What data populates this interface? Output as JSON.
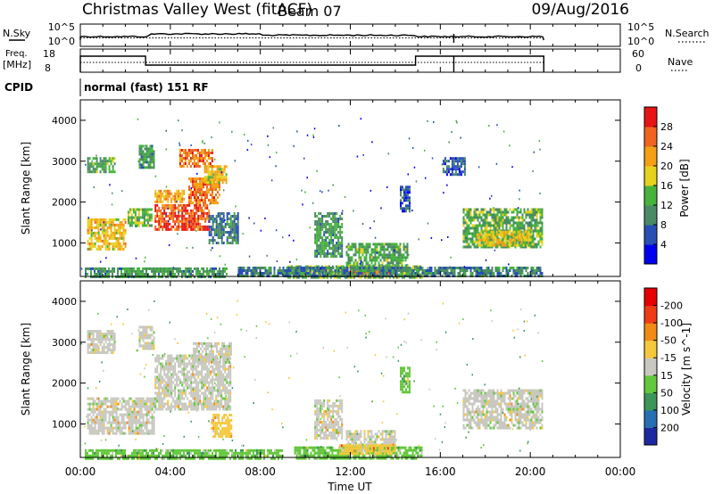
{
  "header": {
    "station": "Christmas Valley West (fitACF)",
    "beam": "Beam 07",
    "date": "09/Aug/2016"
  },
  "noise_panel": {
    "left_label": "N.Sky",
    "left_ticks": [
      "10^5",
      "10^0"
    ],
    "right_ticks": [
      "10^5",
      "10^0"
    ],
    "right_label": "N.Search"
  },
  "freq_panel": {
    "left_label_1": "Freq.",
    "left_label_2": "[MHz]",
    "left_ticks": [
      "18",
      "8"
    ],
    "right_ticks": [
      "60",
      "0"
    ],
    "right_label": "Nave"
  },
  "cpid": {
    "label": "CPID",
    "value": "normal (fast) 151 RF"
  },
  "chart_data": [
    {
      "type": "heatmap",
      "name": "power",
      "ylabel": "Slant Range [km]",
      "y_ticks": [
        "1000",
        "2000",
        "3000",
        "4000"
      ],
      "ylim": [
        180,
        4500
      ],
      "xlim_hours": [
        0,
        24
      ],
      "colorbar_label": "Power [dB]",
      "colorbar_ticks": [
        "4",
        "8",
        "12",
        "16",
        "20",
        "24",
        "28"
      ],
      "colorbar_colors": [
        "#0000f0",
        "#2850b4",
        "#4a8a64",
        "#46b43c",
        "#e6d21e",
        "#f5a014",
        "#f0641e",
        "#e61414"
      ],
      "blobs": [
        {
          "t": [
            0.3,
            2.0
          ],
          "r": [
            850,
            1600
          ],
          "lvl": 4.5
        },
        {
          "t": [
            2.1,
            3.2
          ],
          "r": [
            1400,
            1850
          ],
          "lvl": 3.0
        },
        {
          "t": [
            0.3,
            1.5
          ],
          "r": [
            2750,
            3100
          ],
          "lvl": 2.6
        },
        {
          "t": [
            2.6,
            3.3
          ],
          "r": [
            2850,
            3400
          ],
          "lvl": 2.4
        },
        {
          "t": [
            3.3,
            5.7
          ],
          "r": [
            1350,
            1950
          ],
          "lvl": 6.3
        },
        {
          "t": [
            4.8,
            6.2
          ],
          "r": [
            1950,
            2600
          ],
          "lvl": 5.6
        },
        {
          "t": [
            5.5,
            6.5
          ],
          "r": [
            2500,
            2900
          ],
          "lvl": 4.2
        },
        {
          "t": [
            4.4,
            5.9
          ],
          "r": [
            2850,
            3300
          ],
          "lvl": 5.7
        },
        {
          "t": [
            3.3,
            4.6
          ],
          "r": [
            2000,
            2300
          ],
          "lvl": 4.6
        },
        {
          "t": [
            5.7,
            7.0
          ],
          "r": [
            1000,
            1750
          ],
          "lvl": 1.6
        },
        {
          "t": [
            10.4,
            11.6
          ],
          "r": [
            650,
            1750
          ],
          "lvl": 2.4
        },
        {
          "t": [
            11.8,
            14.5
          ],
          "r": [
            350,
            1000
          ],
          "lvl": 2.6
        },
        {
          "t": [
            9.2,
            15.2
          ],
          "r": [
            180,
            450
          ],
          "lvl": 3.0
        },
        {
          "t": [
            11.8,
            14.0
          ],
          "r": [
            200,
            320
          ],
          "lvl": 5.8
        },
        {
          "t": [
            14.2,
            14.6
          ],
          "r": [
            1750,
            2400
          ],
          "lvl": 1.2
        },
        {
          "t": [
            16.1,
            17.1
          ],
          "r": [
            2700,
            3100
          ],
          "lvl": 1.2
        },
        {
          "t": [
            17.0,
            20.5
          ],
          "r": [
            900,
            1850
          ],
          "lvl": 2.8
        },
        {
          "t": [
            17.6,
            20.0
          ],
          "r": [
            950,
            1300
          ],
          "lvl": 4.2
        },
        {
          "t": [
            7.0,
            20.5
          ],
          "r": [
            180,
            420
          ],
          "lvl": 1.8
        },
        {
          "t": [
            0.2,
            6.5
          ],
          "r": [
            180,
            400
          ],
          "lvl": 2.4
        }
      ]
    },
    {
      "type": "heatmap",
      "name": "velocity",
      "ylabel": "Slant Range [km]",
      "y_ticks": [
        "1000",
        "2000",
        "3000",
        "4000"
      ],
      "ylim": [
        180,
        4500
      ],
      "xlim_hours": [
        0,
        24
      ],
      "colorbar_label": "Velocity [m s^-1]",
      "colorbar_ticks": [
        "200",
        "100",
        "50",
        "15",
        "-15",
        "-50",
        "-100",
        "-200"
      ],
      "colorbar_colors": [
        "#1e28a0",
        "#2870b4",
        "#3c965a",
        "#64c83c",
        "#c8c8c0",
        "#f5c83c",
        "#f08c14",
        "#f03c14",
        "#e60000"
      ],
      "blobs": [
        {
          "t": [
            0.3,
            3.3
          ],
          "r": [
            750,
            1650
          ],
          "cat": 4
        },
        {
          "t": [
            0.3,
            1.5
          ],
          "r": [
            2750,
            3300
          ],
          "cat": 4
        },
        {
          "t": [
            2.6,
            3.3
          ],
          "r": [
            2850,
            3400
          ],
          "cat": 4
        },
        {
          "t": [
            3.3,
            6.7
          ],
          "r": [
            1350,
            2700
          ],
          "cat": 4
        },
        {
          "t": [
            5.0,
            6.7
          ],
          "r": [
            2500,
            3000
          ],
          "cat": 4
        },
        {
          "t": [
            5.8,
            6.7
          ],
          "r": [
            700,
            1250
          ],
          "cat": 5
        },
        {
          "t": [
            10.4,
            11.6
          ],
          "r": [
            650,
            1600
          ],
          "cat": 4
        },
        {
          "t": [
            11.8,
            14.0
          ],
          "r": [
            350,
            850
          ],
          "cat": 4
        },
        {
          "t": [
            17.0,
            20.5
          ],
          "r": [
            900,
            1850
          ],
          "cat": 4
        },
        {
          "t": [
            9.5,
            15.2
          ],
          "r": [
            180,
            450
          ],
          "cat": 3
        },
        {
          "t": [
            11.5,
            14.0
          ],
          "r": [
            250,
            500
          ],
          "cat": 5
        },
        {
          "t": [
            0.2,
            9.0
          ],
          "r": [
            180,
            380
          ],
          "cat": 3
        },
        {
          "t": [
            14.2,
            14.6
          ],
          "r": [
            1750,
            2400
          ],
          "cat": 3
        }
      ]
    }
  ],
  "xaxis": {
    "label": "Time UT",
    "ticks": [
      "00:00",
      "04:00",
      "08:00",
      "12:00",
      "16:00",
      "20:00",
      "00:00"
    ]
  },
  "colors": {
    "axis": "#000000",
    "background": "#ffffff"
  }
}
